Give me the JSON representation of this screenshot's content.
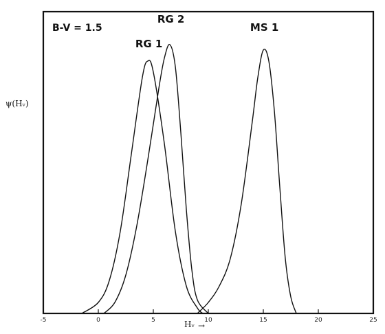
{
  "chart_data": {
    "type": "line",
    "title": "",
    "annotation": "B-V = 1.5",
    "xlabel": "Hᵥ",
    "xlabel_arrow": "→",
    "ylabel": "ψ(Hᵥ)",
    "xlim": [
      -5,
      25
    ],
    "ylim": [
      0,
      1.1
    ],
    "x_ticks": [
      -5,
      0,
      5,
      10,
      15,
      20,
      25
    ],
    "y_ticks_shown": false,
    "grid": false,
    "series": [
      {
        "name": "RG 1",
        "x": [
          -1.5,
          0,
          1,
          2,
          3,
          4,
          4.5,
          5,
          6,
          7,
          8,
          9,
          9.5
        ],
        "y": [
          0.0,
          0.04,
          0.12,
          0.3,
          0.58,
          0.86,
          0.92,
          0.88,
          0.62,
          0.3,
          0.1,
          0.02,
          0.0
        ]
      },
      {
        "name": "RG 2",
        "x": [
          0.5,
          1.5,
          2.5,
          3.5,
          4.5,
          5.5,
          6,
          6.5,
          7,
          7.5,
          8,
          8.5,
          9,
          10
        ],
        "y": [
          0.0,
          0.04,
          0.14,
          0.32,
          0.56,
          0.82,
          0.93,
          0.98,
          0.9,
          0.66,
          0.38,
          0.16,
          0.05,
          0.0
        ]
      },
      {
        "name": "MS 1",
        "x": [
          9,
          10,
          11,
          12,
          13,
          14,
          14.5,
          15,
          15.5,
          16,
          16.5,
          17,
          17.5,
          18
        ],
        "y": [
          0.0,
          0.04,
          0.1,
          0.2,
          0.4,
          0.7,
          0.86,
          0.96,
          0.92,
          0.74,
          0.46,
          0.2,
          0.06,
          0.0
        ]
      }
    ],
    "series_label_anchor": {
      "RG 1": [
        4.6,
        0.97
      ],
      "RG 2": [
        6.6,
        1.06
      ],
      "MS 1": [
        15.1,
        1.03
      ]
    },
    "colors": {
      "line": "#111111",
      "frame": "#111111"
    }
  }
}
